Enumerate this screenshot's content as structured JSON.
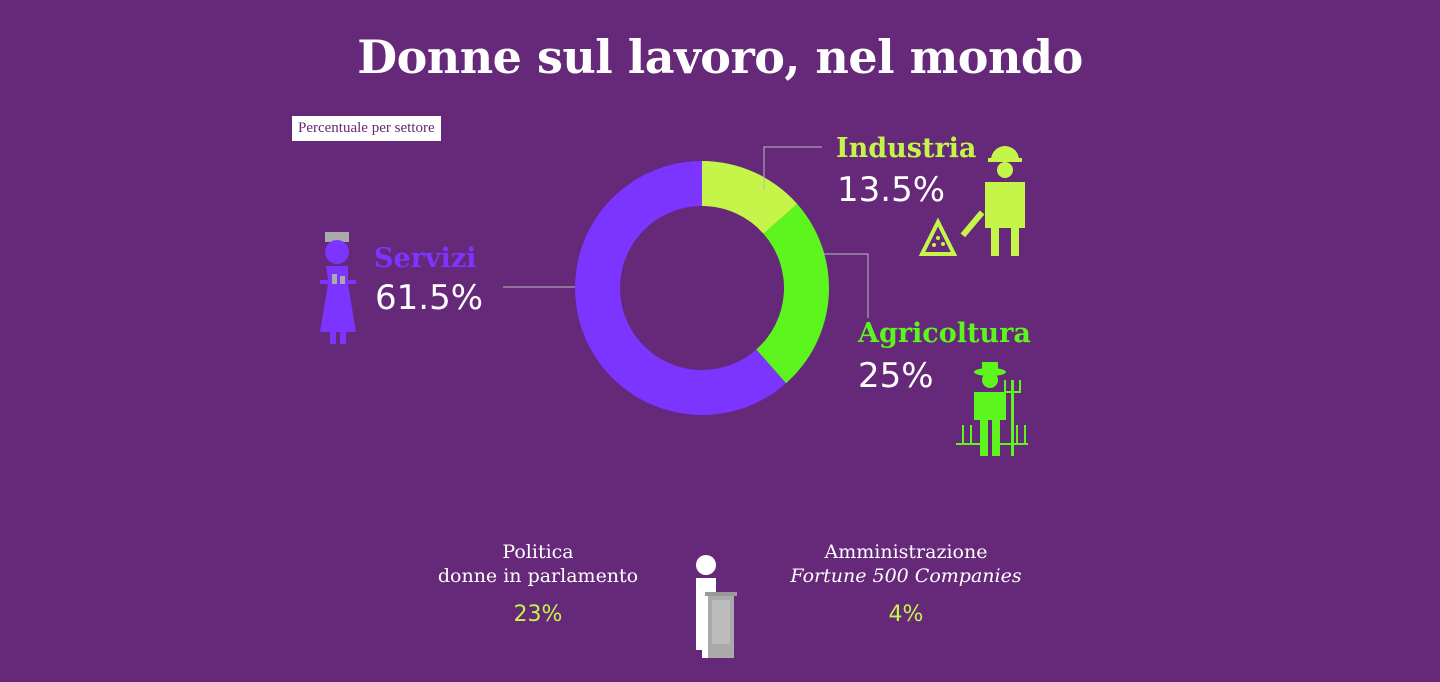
{
  "title": "Donne sul lavoro, nel mondo",
  "subtitle": "Percentuale per settore",
  "chart_data": {
    "type": "pie",
    "variant": "donut",
    "title": "Donne sul lavoro, nel mondo",
    "subtitle": "Percentuale per settore",
    "slices": [
      {
        "label": "Industria",
        "value": 13.5,
        "display": "13.5%",
        "color": "#c6f54a"
      },
      {
        "label": "Agricoltura",
        "value": 25,
        "display": "25%",
        "color": "#5cf51e"
      },
      {
        "label": "Servizi",
        "value": 61.5,
        "display": "61.5%",
        "color": "#7b35ff"
      }
    ],
    "start": "top",
    "direction": "clockwise"
  },
  "bottom": {
    "politica": {
      "line1": "Politica",
      "line2": "donne in parlamento",
      "value": "23%"
    },
    "amministrazione": {
      "line1": "Amministrazione",
      "line2": "Fortune 500 Companies",
      "value": "4%"
    }
  },
  "icons": [
    "waitress-icon",
    "construction-worker-icon",
    "farmer-icon",
    "speaker-podium-icon"
  ],
  "colors": {
    "background": "#662878",
    "accent_value": "#c6f54a"
  }
}
